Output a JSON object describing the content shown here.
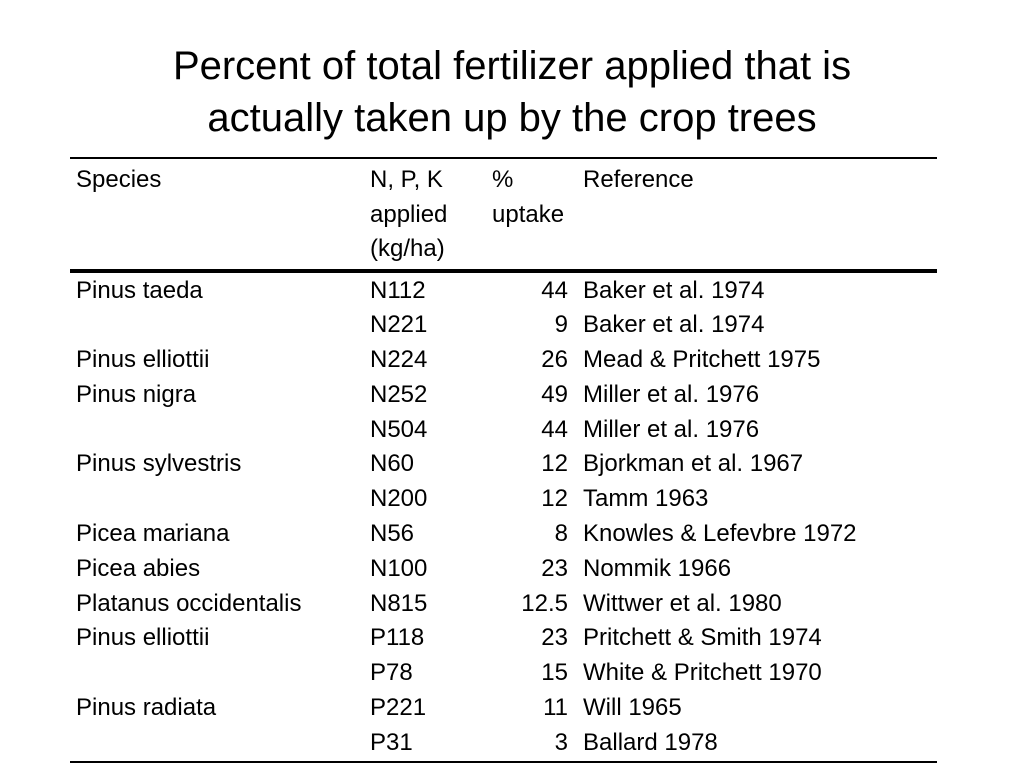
{
  "title": {
    "line1": "Percent of total fertilizer applied that is",
    "line2": "actually taken up by the crop trees"
  },
  "table": {
    "headers": {
      "species": [
        "Species"
      ],
      "npk": [
        "N, P, K",
        "applied",
        "(kg/ha)"
      ],
      "uptake": [
        "%",
        "uptake"
      ],
      "reference": [
        "Reference"
      ]
    },
    "rows": [
      {
        "species": "Pinus taeda",
        "npk": "N112",
        "uptake": "44",
        "reference": "Baker et al. 1974"
      },
      {
        "species": "",
        "npk": "N221",
        "uptake": "9",
        "reference": "Baker et al. 1974"
      },
      {
        "species": "Pinus elliottii",
        "npk": "N224",
        "uptake": "26",
        "reference": "Mead & Pritchett 1975"
      },
      {
        "species": "Pinus nigra",
        "npk": "N252",
        "uptake": "49",
        "reference": "Miller et al. 1976"
      },
      {
        "species": "",
        "npk": "N504",
        "uptake": "44",
        "reference": "Miller et al. 1976"
      },
      {
        "species": "Pinus sylvestris",
        "npk": "N60",
        "uptake": "12",
        "reference": "Bjorkman et al. 1967"
      },
      {
        "species": "",
        "npk": "N200",
        "uptake": "12",
        "reference": "Tamm 1963"
      },
      {
        "species": "Picea mariana",
        "npk": "N56",
        "uptake": "8",
        "reference": "Knowles & Lefevbre 1972"
      },
      {
        "species": "Picea abies",
        "npk": "N100",
        "uptake": "23",
        "reference": "Nommik 1966"
      },
      {
        "species": "Platanus occidentalis",
        "npk": "N815",
        "uptake": "12.5",
        "reference": "Wittwer et al. 1980"
      },
      {
        "species": "Pinus elliottii",
        "npk": "P118",
        "uptake": "23",
        "reference": "Pritchett & Smith 1974"
      },
      {
        "species": "",
        "npk": "P78",
        "uptake": "15",
        "reference": "White & Pritchett 1970"
      },
      {
        "species": "Pinus radiata",
        "npk": "P221",
        "uptake": "11",
        "reference": "Will 1965"
      },
      {
        "species": "",
        "npk": "P31",
        "uptake": "3",
        "reference": "Ballard 1978"
      }
    ]
  }
}
